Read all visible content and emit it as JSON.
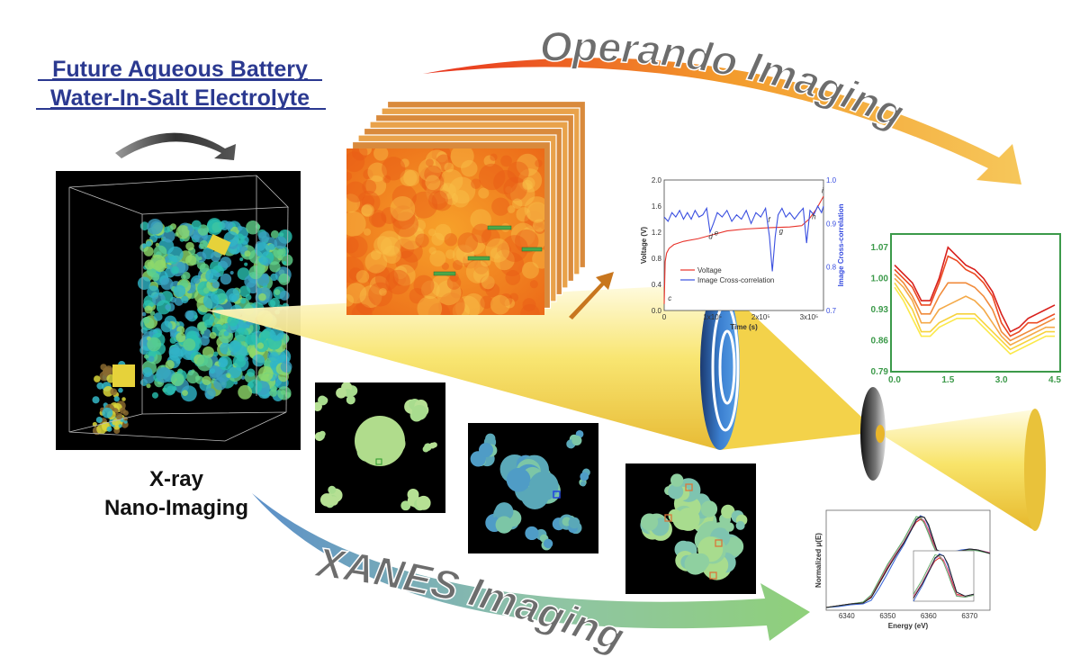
{
  "header": {
    "title_line1": "Future Aqueous Battery",
    "title_line2": "Water-In-Salt Electrolyte"
  },
  "labels": {
    "xray_line1": "X-ray",
    "xray_line2": "Nano-Imaging",
    "operando": "Operando Imaging",
    "xanes": "XANES Imaging"
  },
  "colors": {
    "title": "#2b3990",
    "beam": "#f5d94a",
    "operando_arrow": [
      "#e8321e",
      "#f39a2b",
      "#f6c75a"
    ],
    "xanes_arrow": [
      "#5b8fc9",
      "#8fc3a8",
      "#8fd07a"
    ],
    "green_frame": "#3c9a4a"
  },
  "chart_data": [
    {
      "type": "line",
      "xlabel": "Time (s)",
      "ylabel": "Voltage (V)",
      "y2label": "Image Cross-correlation",
      "xlim": [
        0,
        330000
      ],
      "ylim": [
        0,
        2.0
      ],
      "y2lim": [
        0.7,
        1.0
      ],
      "xticks": [
        {
          "v": 0,
          "label": "0"
        },
        {
          "v": 100000,
          "label": "1x10⁵"
        },
        {
          "v": 200000,
          "label": "2x10⁵"
        },
        {
          "v": 300000,
          "label": "3x10⁵"
        }
      ],
      "yticks": [
        "0.0",
        "0.4",
        "0.8",
        "1.2",
        "1.6",
        "2.0"
      ],
      "y2ticks": [
        "0.7",
        "0.8",
        "0.9",
        "1.0"
      ],
      "legend": "bottom-left",
      "series": [
        {
          "name": "Voltage",
          "color": "#e8322a",
          "axis": "left",
          "x": [
            0,
            2000,
            5000,
            10000,
            20000,
            40000,
            70000,
            100000,
            130000,
            170000,
            220000,
            260000,
            285000,
            300000,
            315000,
            330000
          ],
          "y": [
            0.1,
            0.75,
            0.88,
            0.95,
            1.01,
            1.06,
            1.1,
            1.16,
            1.22,
            1.25,
            1.27,
            1.28,
            1.3,
            1.4,
            1.55,
            1.75
          ]
        },
        {
          "name": "Image Cross-correlation",
          "color": "#3a4fe0",
          "axis": "right",
          "x": [
            0,
            8000,
            16000,
            24000,
            32000,
            40000,
            48000,
            56000,
            64000,
            72000,
            80000,
            88000,
            95000,
            102000,
            110000,
            120000,
            130000,
            140000,
            150000,
            160000,
            170000,
            180000,
            190000,
            200000,
            210000,
            218000,
            224000,
            230000,
            236000,
            244000,
            252000,
            260000,
            270000,
            280000,
            288000,
            295000,
            302000,
            310000,
            318000,
            326000,
            330000
          ],
          "y": [
            0.915,
            0.905,
            0.925,
            0.915,
            0.93,
            0.91,
            0.925,
            0.91,
            0.93,
            0.915,
            0.92,
            0.935,
            0.88,
            0.9,
            0.925,
            0.915,
            0.93,
            0.905,
            0.92,
            0.91,
            0.93,
            0.9,
            0.925,
            0.915,
            0.935,
            0.87,
            0.79,
            0.87,
            0.92,
            0.935,
            0.915,
            0.925,
            0.91,
            0.925,
            0.935,
            0.855,
            0.93,
            0.92,
            0.94,
            0.925,
            0.94
          ]
        }
      ],
      "annotations": [
        {
          "text": "c",
          "x": 8000,
          "y": 0.15
        },
        {
          "text": "d",
          "x": 92000,
          "y": 1.1
        },
        {
          "text": "e",
          "x": 104000,
          "y": 1.15
        },
        {
          "text": "f",
          "x": 215000,
          "y": 1.35
        },
        {
          "text": "g",
          "x": 238000,
          "y": 1.18
        },
        {
          "text": "h",
          "x": 306000,
          "y": 1.4
        },
        {
          "text": "i",
          "x": 326000,
          "y": 1.8
        }
      ]
    },
    {
      "type": "line",
      "xlim": [
        0,
        4.5
      ],
      "ylim": [
        0.79,
        1.1
      ],
      "xticks": [
        "0.0",
        "1.5",
        "3.0",
        "4.5"
      ],
      "yticks": [
        "0.79",
        "0.86",
        "0.93",
        "1.00",
        "1.07"
      ],
      "x": [
        0,
        0.25,
        0.5,
        0.75,
        1.0,
        1.25,
        1.5,
        1.75,
        2.0,
        2.25,
        2.5,
        2.75,
        3.0,
        3.25,
        3.5,
        3.75,
        4.0,
        4.25,
        4.5
      ],
      "series": [
        {
          "color": "#d8201c",
          "values": [
            1.03,
            1.01,
            0.99,
            0.95,
            0.95,
            1.0,
            1.07,
            1.05,
            1.03,
            1.02,
            1.0,
            0.97,
            0.92,
            0.88,
            0.89,
            0.91,
            0.92,
            0.93,
            0.94
          ]
        },
        {
          "color": "#ec4a22",
          "values": [
            1.02,
            1.0,
            0.98,
            0.94,
            0.94,
            0.99,
            1.05,
            1.04,
            1.02,
            1.01,
            0.99,
            0.96,
            0.9,
            0.87,
            0.88,
            0.9,
            0.9,
            0.91,
            0.92
          ]
        },
        {
          "color": "#f08a3a",
          "values": [
            1.01,
            0.99,
            0.96,
            0.92,
            0.92,
            0.96,
            0.99,
            0.99,
            0.99,
            0.98,
            0.96,
            0.93,
            0.88,
            0.86,
            0.87,
            0.88,
            0.89,
            0.9,
            0.91
          ]
        },
        {
          "color": "#f4a948",
          "values": [
            1.0,
            0.98,
            0.95,
            0.9,
            0.9,
            0.93,
            0.94,
            0.95,
            0.96,
            0.95,
            0.93,
            0.9,
            0.87,
            0.85,
            0.86,
            0.87,
            0.88,
            0.89,
            0.89
          ]
        },
        {
          "color": "#f7d23c",
          "values": [
            0.99,
            0.96,
            0.93,
            0.88,
            0.88,
            0.9,
            0.91,
            0.92,
            0.92,
            0.92,
            0.9,
            0.88,
            0.86,
            0.84,
            0.85,
            0.86,
            0.87,
            0.88,
            0.88
          ]
        },
        {
          "color": "#fbe94a",
          "values": [
            0.98,
            0.95,
            0.91,
            0.87,
            0.87,
            0.89,
            0.9,
            0.91,
            0.91,
            0.91,
            0.89,
            0.87,
            0.85,
            0.83,
            0.84,
            0.85,
            0.86,
            0.87,
            0.87
          ]
        }
      ]
    },
    {
      "type": "line",
      "xlabel": "Energy (eV)",
      "ylabel": "Normalized μ(E)",
      "xlim": [
        6335,
        6375
      ],
      "ylim": [
        0,
        1.05
      ],
      "xticks": [
        "6340",
        "6350",
        "6360",
        "6370"
      ],
      "x": [
        6335,
        6338,
        6341,
        6344,
        6346,
        6348,
        6350,
        6352,
        6354,
        6356,
        6357,
        6358,
        6359,
        6360,
        6361,
        6362,
        6364,
        6366,
        6368,
        6370,
        6372,
        6375
      ],
      "series": [
        {
          "color": "#d8201c",
          "values": [
            0.0,
            0.02,
            0.04,
            0.05,
            0.12,
            0.28,
            0.44,
            0.58,
            0.72,
            0.88,
            0.95,
            0.98,
            0.95,
            0.86,
            0.74,
            0.62,
            0.6,
            0.62,
            0.63,
            0.65,
            0.64,
            0.6
          ]
        },
        {
          "color": "#e0609a",
          "values": [
            0.0,
            0.02,
            0.04,
            0.06,
            0.13,
            0.3,
            0.46,
            0.6,
            0.73,
            0.9,
            0.97,
            1.0,
            0.96,
            0.85,
            0.72,
            0.61,
            0.59,
            0.61,
            0.63,
            0.64,
            0.64,
            0.61
          ]
        },
        {
          "color": "#3a66d8",
          "values": [
            0.0,
            0.01,
            0.03,
            0.04,
            0.08,
            0.22,
            0.38,
            0.55,
            0.7,
            0.88,
            0.97,
            1.02,
            1.0,
            0.9,
            0.77,
            0.64,
            0.6,
            0.62,
            0.64,
            0.65,
            0.64,
            0.6
          ]
        },
        {
          "color": "#5aaa66",
          "values": [
            0.0,
            0.02,
            0.04,
            0.06,
            0.14,
            0.31,
            0.48,
            0.62,
            0.76,
            0.93,
            1.01,
            1.0,
            0.93,
            0.82,
            0.7,
            0.6,
            0.59,
            0.61,
            0.63,
            0.64,
            0.63,
            0.6
          ]
        },
        {
          "color": "#222222",
          "values": [
            0.0,
            0.02,
            0.04,
            0.05,
            0.11,
            0.27,
            0.43,
            0.58,
            0.72,
            0.88,
            0.98,
            1.01,
            1.0,
            0.92,
            0.78,
            0.64,
            0.6,
            0.62,
            0.63,
            0.65,
            0.64,
            0.6
          ]
        }
      ]
    }
  ]
}
